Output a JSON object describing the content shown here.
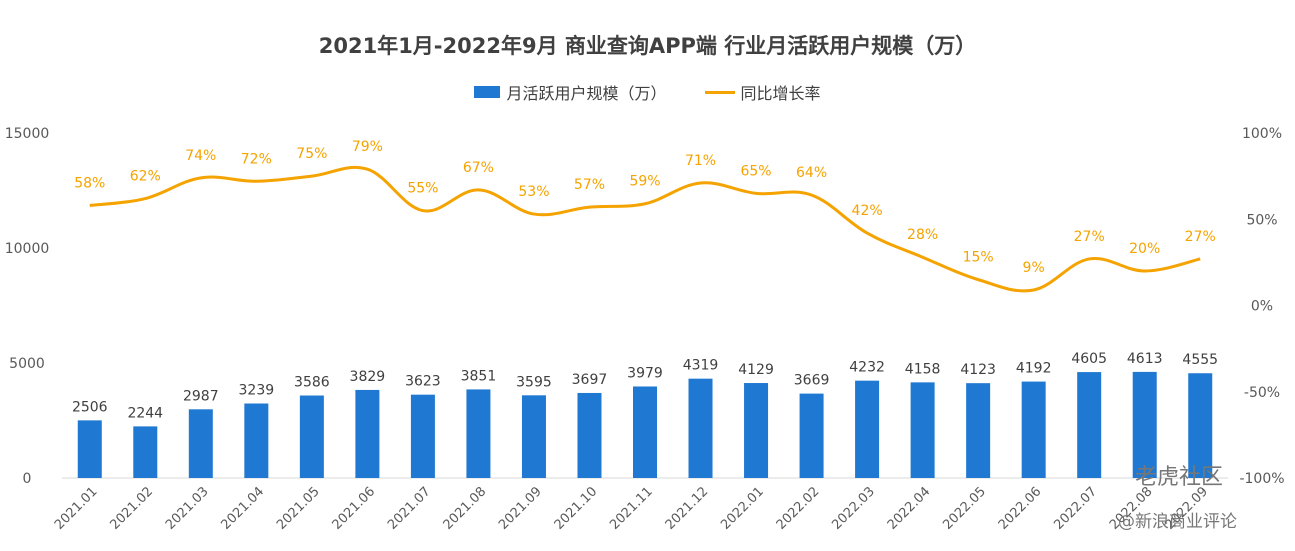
{
  "chart_data": {
    "type": "bar",
    "title": "2021年1月-2022年9月 商业查询APP端 行业月活跃用户规模（万）",
    "categories": [
      "2021.01",
      "2021.02",
      "2021.03",
      "2021.04",
      "2021.05",
      "2021.06",
      "2021.07",
      "2021.08",
      "2021.09",
      "2021.10",
      "2021.11",
      "2021.12",
      "2022.01",
      "2022.02",
      "2022.03",
      "2022.04",
      "2022.05",
      "2022.06",
      "2022.07",
      "2022.08",
      "2022.09"
    ],
    "series": [
      {
        "name": "月活跃用户规模（万）",
        "type": "bar",
        "axis": "left",
        "color": "#1f78d1",
        "values": [
          2506,
          2244,
          2987,
          3239,
          3586,
          3829,
          3623,
          3851,
          3595,
          3697,
          3979,
          4319,
          4129,
          3669,
          4232,
          4158,
          4123,
          4192,
          4605,
          4613,
          4555
        ]
      },
      {
        "name": "同比增长率",
        "type": "line",
        "axis": "right",
        "color": "#f5a300",
        "values": [
          58,
          62,
          74,
          72,
          75,
          79,
          55,
          67,
          53,
          57,
          59,
          71,
          65,
          64,
          42,
          28,
          15,
          9,
          27,
          20,
          27
        ],
        "labels": [
          "58%",
          "62%",
          "74%",
          "72%",
          "75%",
          "79%",
          "55%",
          "67%",
          "53%",
          "57%",
          "59%",
          "71%",
          "65%",
          "64%",
          "42%",
          "28%",
          "15%",
          "9%",
          "27%",
          "20%",
          "27%"
        ]
      }
    ],
    "left_axis": {
      "ylim": [
        0,
        15000
      ],
      "ticks": [
        0,
        5000,
        10000,
        15000
      ],
      "tick_labels": [
        "0",
        "5000",
        "10000",
        "15000"
      ]
    },
    "right_axis": {
      "ylim": [
        -100,
        100
      ],
      "ticks": [
        -100,
        -50,
        0,
        50,
        100
      ],
      "tick_labels": [
        "-100%",
        "-50%",
        "0%",
        "50%",
        "100%"
      ]
    },
    "legend_position": "top-center",
    "grid": false
  },
  "watermark": {
    "brand": "老虎社区",
    "source": "@新浪商业评论"
  }
}
